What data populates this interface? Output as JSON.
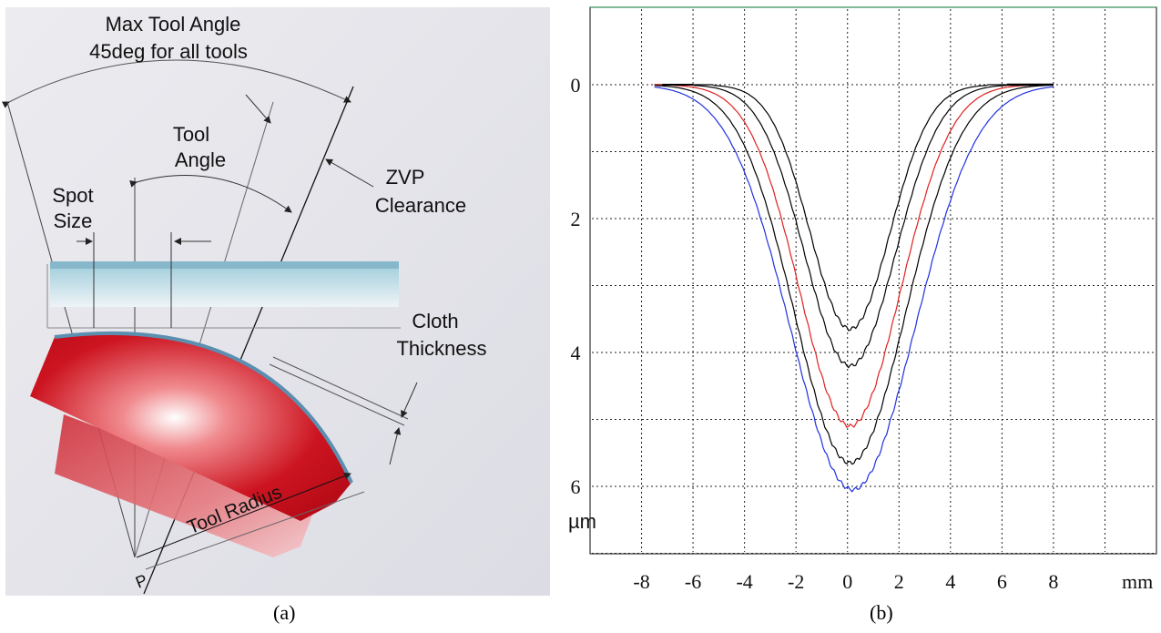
{
  "panel_a": {
    "labels": {
      "max_tool_angle_line1": "Max Tool Angle",
      "max_tool_angle_line2": "45deg for all tools",
      "tool_angle_line1": "Tool",
      "tool_angle_line2": "Angle",
      "spot_size_line1": "Spot",
      "spot_size_line2": "Size",
      "zvp_line1": "ZVP",
      "zvp_line2": "Clearance",
      "cloth_line1": "Cloth",
      "cloth_line2": "Thickness",
      "tool_radius": "Tool Radius",
      "point_p": "P"
    },
    "colors": {
      "background": "#e9e9ee",
      "tool": "#c8101c",
      "cloth": "#9cc4d4",
      "arc": "#5b8fb0"
    },
    "caption": "(a)"
  },
  "panel_b": {
    "caption": "(b)",
    "unit_y": "µm",
    "unit_x": "mm",
    "chart_data": {
      "type": "line",
      "xlabel": "mm",
      "ylabel": "µm",
      "xlim": [
        -10,
        12
      ],
      "ylim": [
        0,
        7
      ],
      "y_inverted": true,
      "grid": true,
      "x_ticks": [
        "-8",
        "-6",
        "-4",
        "-2",
        "0",
        "2",
        "4",
        "6",
        "8"
      ],
      "y_ticks": [
        "0",
        "2",
        "4",
        "6"
      ],
      "series": [
        {
          "color": "#000000",
          "sigma": 1.55,
          "center": 0.1,
          "depths": 3.65
        },
        {
          "color": "#000000",
          "sigma": 1.75,
          "center": 0.1,
          "depths": 4.2
        },
        {
          "color": "#e02020",
          "sigma": 1.95,
          "center": 0.1,
          "depths": 5.1
        },
        {
          "color": "#000000",
          "sigma": 2.15,
          "center": 0.1,
          "depths": 5.65
        },
        {
          "color": "#2030e0",
          "sigma": 2.4,
          "center": 0.2,
          "depths": 6.05
        }
      ],
      "x_range": [
        -7.5,
        8
      ]
    }
  }
}
